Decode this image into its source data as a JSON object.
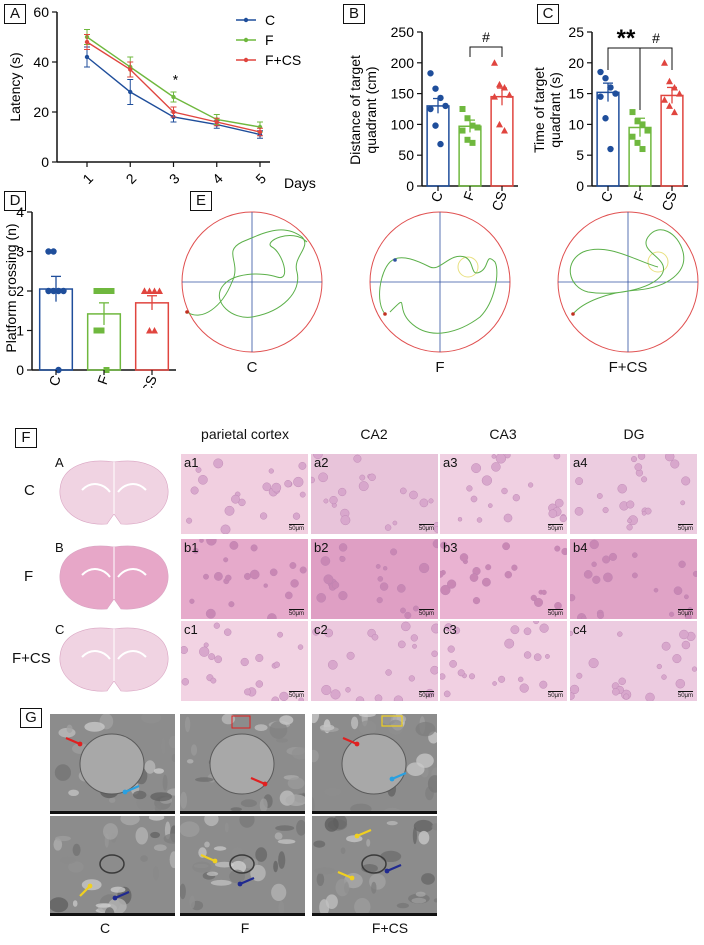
{
  "panels": {
    "A": "A",
    "B": "B",
    "C": "C",
    "D": "D",
    "E": "E",
    "F": "F",
    "G": "G"
  },
  "chart_data": [
    {
      "id": "A",
      "type": "line",
      "xlabel": "Days",
      "ylabel": "Latency (s)",
      "x": [
        1,
        2,
        3,
        4,
        5
      ],
      "ylim": [
        0,
        60
      ],
      "yticks": [
        0,
        20,
        40,
        60
      ],
      "series": [
        {
          "name": "C",
          "color": "#1f4e9b",
          "values": [
            42,
            28,
            18,
            15,
            11
          ],
          "err": [
            4,
            5,
            2,
            1.5,
            1.5
          ]
        },
        {
          "name": "F",
          "color": "#6fb83e",
          "values": [
            50,
            38,
            26,
            17,
            14
          ],
          "err": [
            3,
            4,
            2,
            2,
            2
          ]
        },
        {
          "name": "F+CS",
          "color": "#e0453f",
          "values": [
            48,
            37,
            20,
            16,
            12
          ],
          "err": [
            3,
            3,
            2,
            1.5,
            1.5
          ]
        }
      ],
      "annotations": [
        {
          "x": 3,
          "text": "*"
        }
      ],
      "legend": "top-right"
    },
    {
      "id": "B",
      "type": "bar",
      "ylabel": "Distance of target quadrant (cm)",
      "categories": [
        "C",
        "F",
        "F+CS"
      ],
      "ylim": [
        0,
        250
      ],
      "yticks": [
        0,
        50,
        100,
        150,
        200,
        250
      ],
      "values": [
        130,
        97,
        145
      ],
      "err": [
        12,
        10,
        14
      ],
      "points": [
        [
          183,
          158,
          143,
          130,
          125,
          98,
          68
        ],
        [
          125,
          110,
          98,
          95,
          90,
          75,
          70
        ],
        [
          200,
          165,
          160,
          148,
          145,
          100,
          90
        ]
      ],
      "colors": [
        "#1f4e9b",
        "#6fb83e",
        "#e0453f"
      ],
      "annotations": [
        {
          "text": "#",
          "between": [
            "F",
            "F+CS"
          ]
        }
      ]
    },
    {
      "id": "C",
      "type": "bar",
      "ylabel": "Time of target quadrant (s)",
      "categories": [
        "C",
        "F",
        "F+CS"
      ],
      "ylim": [
        0,
        25
      ],
      "yticks": [
        0,
        5,
        10,
        15,
        20,
        25
      ],
      "values": [
        15.2,
        9.5,
        14.7
      ],
      "err": [
        1.5,
        1.5,
        1.3
      ],
      "points": [
        [
          18.5,
          17.5,
          16,
          15,
          14.5,
          11,
          6
        ],
        [
          12,
          10.5,
          10,
          9,
          8,
          7,
          6
        ],
        [
          20,
          17,
          16,
          15,
          14,
          13,
          12
        ]
      ],
      "colors": [
        "#1f4e9b",
        "#6fb83e",
        "#e0453f"
      ],
      "annotations": [
        {
          "text": "**",
          "between": [
            "C",
            "F"
          ]
        },
        {
          "text": "#",
          "between": [
            "F",
            "F+CS"
          ]
        }
      ]
    },
    {
      "id": "D",
      "type": "bar",
      "ylabel": "Platform crossing (n)",
      "categories": [
        "C",
        "F",
        "F+CS"
      ],
      "ylim": [
        0,
        4
      ],
      "yticks": [
        0,
        1,
        2,
        3,
        4
      ],
      "values": [
        2.05,
        1.42,
        1.7
      ],
      "err": [
        0.32,
        0.28,
        0.18
      ],
      "points": [
        [
          3,
          3,
          2,
          2,
          2,
          2,
          0
        ],
        [
          2,
          2,
          2,
          2,
          1,
          1,
          0
        ],
        [
          2,
          2,
          2,
          2,
          2,
          1,
          1
        ]
      ],
      "colors": [
        "#1f4e9b",
        "#6fb83e",
        "#e0453f"
      ]
    }
  ],
  "tracks": {
    "labels": [
      "C",
      "F",
      "F+CS"
    ]
  },
  "histology": {
    "col_headers": [
      "parietal cortex",
      "CA2",
      "CA3",
      "DG"
    ],
    "rows": [
      {
        "label": "C",
        "whole": "A",
        "tiles": [
          "a1",
          "a2",
          "a3",
          "a4"
        ]
      },
      {
        "label": "F",
        "whole": "B",
        "tiles": [
          "b1",
          "b2",
          "b3",
          "b4"
        ]
      },
      {
        "label": "F+CS",
        "whole": "C",
        "tiles": [
          "c1",
          "c2",
          "c3",
          "c4"
        ]
      }
    ],
    "scale_text": "50μm"
  },
  "em": {
    "captions": [
      "C",
      "F",
      "F+CS"
    ]
  }
}
